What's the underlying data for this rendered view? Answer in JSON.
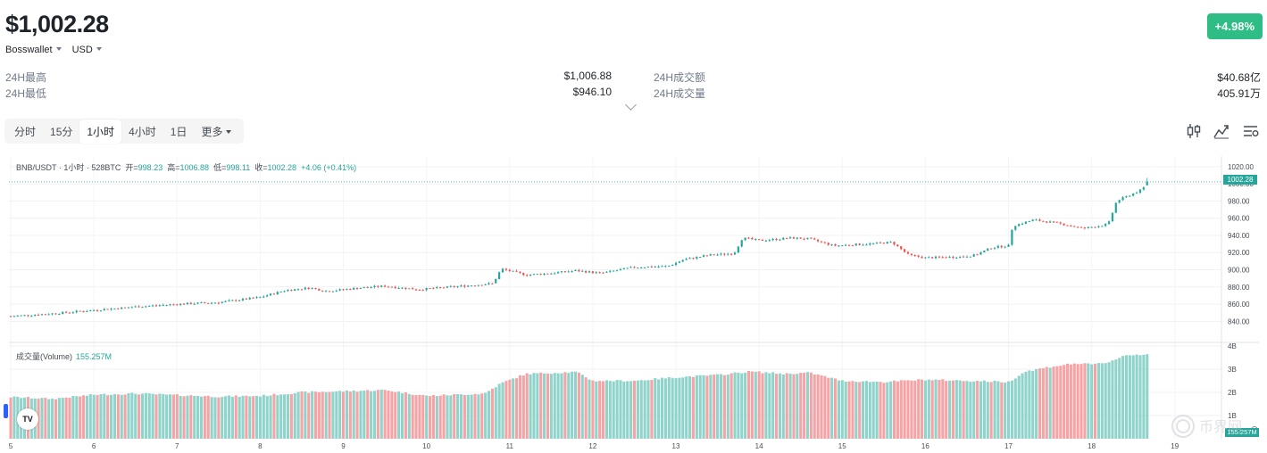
{
  "header": {
    "price": "$1,002.28",
    "change": "+4.98%",
    "wallet": "Bosswallet",
    "currency": "USD"
  },
  "stats": {
    "high_label": "24H最高",
    "high_value": "$1,006.88",
    "low_label": "24H最低",
    "low_value": "$946.10",
    "turnover_label": "24H成交额",
    "turnover_value": "$40.68亿",
    "volume_label": "24H成交量",
    "volume_value": "405.91万"
  },
  "timeframes": [
    "分时",
    "15分",
    "1小时",
    "4小时",
    "1日",
    "更多"
  ],
  "active_timeframe": "1小时",
  "icons": [
    "candlestick-icon",
    "line-chart-icon",
    "settings-icon"
  ],
  "legend": {
    "symbol": "BNB/USDT · 1小时 · 528BTC",
    "open_label": "开=",
    "open": "998.23",
    "high_label": "高=",
    "high": "1006.88",
    "low_label": "低=",
    "low": "998.11",
    "close_label": "收=",
    "close": "1002.28",
    "change": "+4.06 (+0.41%)",
    "volume_label": "成交量(Volume)",
    "volume_value": "155.257M",
    "last_price_tag": "1002.28",
    "last_volume_tag": "155.257M"
  },
  "logo": {
    "text": "TV"
  },
  "watermark": {
    "text": "币界网"
  },
  "colors": {
    "up": "#26a69a",
    "down": "#ef5350",
    "up_vol": "#8fd3ca",
    "down_vol": "#f6a3a5",
    "badge": "#2ebd85"
  },
  "chart_data": {
    "type": "candlestick",
    "title": "BNB/USDT · 1小时",
    "ylim": [
      830,
      1025
    ],
    "yticks": [
      "1020.00",
      "1000.00",
      "980.00",
      "960.00",
      "940.00",
      "920.00",
      "900.00",
      "880.00",
      "860.00",
      "840.00"
    ],
    "ytick_values": [
      1020,
      1000,
      980,
      960,
      940,
      920,
      900,
      880,
      860,
      840
    ],
    "vol_ylim": [
      0,
      4
    ],
    "vol_ticks": [
      "4B",
      "3B",
      "2B",
      "1B"
    ],
    "vol_tick_values": [
      4,
      3,
      2,
      1
    ],
    "xlim": [
      5,
      19.4
    ],
    "xticks": [
      "5",
      "6",
      "7",
      "8",
      "9",
      "10",
      "11",
      "12",
      "13",
      "14",
      "15",
      "16",
      "17",
      "18",
      "19"
    ],
    "xtick_values": [
      5,
      6,
      7,
      8,
      9,
      10,
      11,
      12,
      13,
      14,
      15,
      16,
      17,
      18,
      19
    ],
    "last_day": 18.7,
    "price_path": [
      [
        5.0,
        846
      ],
      [
        5.5,
        849
      ],
      [
        6.0,
        853
      ],
      [
        6.5,
        857
      ],
      [
        7.0,
        860
      ],
      [
        7.5,
        862
      ],
      [
        8.0,
        868
      ],
      [
        8.3,
        876
      ],
      [
        8.6,
        879
      ],
      [
        8.8,
        875
      ],
      [
        9.2,
        879
      ],
      [
        9.5,
        881
      ],
      [
        9.9,
        877
      ],
      [
        10.3,
        880
      ],
      [
        10.8,
        884
      ],
      [
        10.9,
        901
      ],
      [
        11.2,
        894
      ],
      [
        11.5,
        896
      ],
      [
        11.8,
        899
      ],
      [
        12.1,
        896
      ],
      [
        12.5,
        903
      ],
      [
        12.9,
        904
      ],
      [
        13.1,
        912
      ],
      [
        13.4,
        917
      ],
      [
        13.7,
        919
      ],
      [
        13.8,
        937
      ],
      [
        14.0,
        934
      ],
      [
        14.4,
        937
      ],
      [
        14.6,
        936
      ],
      [
        14.9,
        928
      ],
      [
        15.3,
        930
      ],
      [
        15.6,
        932
      ],
      [
        15.8,
        917
      ],
      [
        16.0,
        914
      ],
      [
        16.4,
        915
      ],
      [
        16.6,
        917
      ],
      [
        16.8,
        926
      ],
      [
        17.0,
        928
      ],
      [
        17.05,
        951
      ],
      [
        17.3,
        958
      ],
      [
        17.6,
        954
      ],
      [
        17.9,
        948
      ],
      [
        18.2,
        953
      ],
      [
        18.3,
        980
      ],
      [
        18.6,
        993
      ],
      [
        18.7,
        1002.28
      ]
    ],
    "volume_path": [
      [
        5.0,
        1.8
      ],
      [
        5.5,
        1.72
      ],
      [
        6.0,
        1.9
      ],
      [
        6.5,
        1.95
      ],
      [
        7.0,
        1.88
      ],
      [
        7.5,
        1.82
      ],
      [
        8.0,
        1.85
      ],
      [
        8.5,
        2.0
      ],
      [
        9.0,
        2.05
      ],
      [
        9.5,
        2.1
      ],
      [
        10.0,
        1.85
      ],
      [
        10.7,
        1.95
      ],
      [
        10.9,
        2.4
      ],
      [
        11.2,
        2.8
      ],
      [
        11.8,
        2.88
      ],
      [
        12.0,
        2.5
      ],
      [
        12.5,
        2.5
      ],
      [
        13.0,
        2.65
      ],
      [
        13.5,
        2.75
      ],
      [
        13.9,
        2.9
      ],
      [
        14.3,
        2.8
      ],
      [
        14.6,
        2.85
      ],
      [
        15.0,
        2.5
      ],
      [
        15.5,
        2.45
      ],
      [
        16.0,
        2.55
      ],
      [
        16.5,
        2.5
      ],
      [
        17.0,
        2.45
      ],
      [
        17.2,
        2.9
      ],
      [
        17.5,
        3.1
      ],
      [
        17.8,
        3.25
      ],
      [
        18.0,
        3.2
      ],
      [
        18.2,
        3.3
      ],
      [
        18.4,
        3.6
      ],
      [
        18.7,
        3.65
      ]
    ],
    "key_values": {
      "open": 998.23,
      "high": 1006.88,
      "low": 998.11,
      "close": 1002.28,
      "last_volume_M": 155.257
    }
  }
}
